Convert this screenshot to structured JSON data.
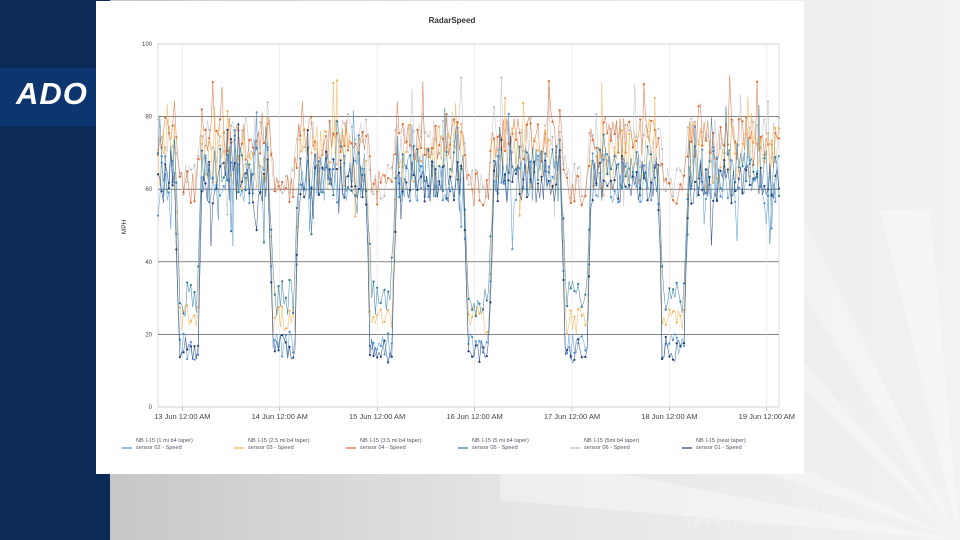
{
  "slide": {
    "logo_text": "ADO",
    "footer_text": "ARIZONA DEPARTMENT OF TRANSPORTATION",
    "colors": {
      "navy": "#0b2a55",
      "logo_band": "#0d3570",
      "footer_text": "#f4f4f4"
    }
  },
  "chart_data": {
    "type": "line",
    "title": "RadarSpeed",
    "xlabel": "",
    "ylabel": "MPH",
    "ylim": [
      0,
      100
    ],
    "yticks": [
      0,
      20,
      40,
      60,
      80,
      100
    ],
    "xlim": [
      "12 Jun 6:00 PM",
      "19 Jun 3:00 AM"
    ],
    "x_tick_labels": [
      "13 Jun 12:00 AM",
      "14 Jun 12:00 AM",
      "15 Jun 12:00 AM",
      "16 Jun 12:00 AM",
      "17 Jun 12:00 AM",
      "18 Jun 12:00 AM",
      "19 Jun 12:00 AM"
    ],
    "grid": {
      "horizontal": true,
      "vertical": true
    },
    "legend_position": "bottom",
    "series": [
      {
        "name": "NB I-15 (1 mi b4 taper) sensor 02 - Speed",
        "color": "#4a90d9",
        "typical_mph": [
          56,
          70
        ],
        "overnight_low_mph": 13
      },
      {
        "name": "NB I-15 (2.5 mi b4 taper) sensor 03 - Speed",
        "color": "#f2b04c",
        "typical_mph": [
          60,
          78
        ],
        "overnight_low_mph": 20
      },
      {
        "name": "NB I-15 (3.5 mi b4 taper) sensor 04 - Speed",
        "color": "#e0662c",
        "typical_mph": [
          68,
          80
        ],
        "overnight_low_mph": 60
      },
      {
        "name": "NB I-15 (5 mi b4 taper) sensor 05 - Speed",
        "color": "#2a7a9a",
        "typical_mph": [
          58,
          72
        ],
        "overnight_low_mph": 30
      },
      {
        "name": "NB I-15 (5mi b4 taper) sensor 06 - Speed",
        "color": "#bdbdbd",
        "typical_mph": [
          66,
          80
        ],
        "overnight_low_mph": 62
      },
      {
        "name": "NB I-15 (near taper) sensor 01 - Speed",
        "color": "#1f3f78",
        "typical_mph": [
          56,
          68
        ],
        "overnight_low_mph": 12
      }
    ],
    "overnight_slowdowns": [
      {
        "from": "12 Jun 10:00 PM",
        "to": "13 Jun 5:00 AM",
        "low_mph": 12
      },
      {
        "from": "13 Jun 9:00 PM",
        "to": "14 Jun 5:00 AM",
        "low_mph": 12
      },
      {
        "from": "14 Jun 9:00 PM",
        "to": "15 Jun 5:00 AM",
        "low_mph": 12
      },
      {
        "from": "15 Jun 9:00 PM",
        "to": "16 Jun 5:00 AM",
        "low_mph": 12
      },
      {
        "from": "16 Jun 9:00 PM",
        "to": "17 Jun 5:00 AM",
        "low_mph": 12
      },
      {
        "from": "17 Jun 9:00 PM",
        "to": "18 Jun 5:00 AM",
        "low_mph": 12
      }
    ]
  }
}
